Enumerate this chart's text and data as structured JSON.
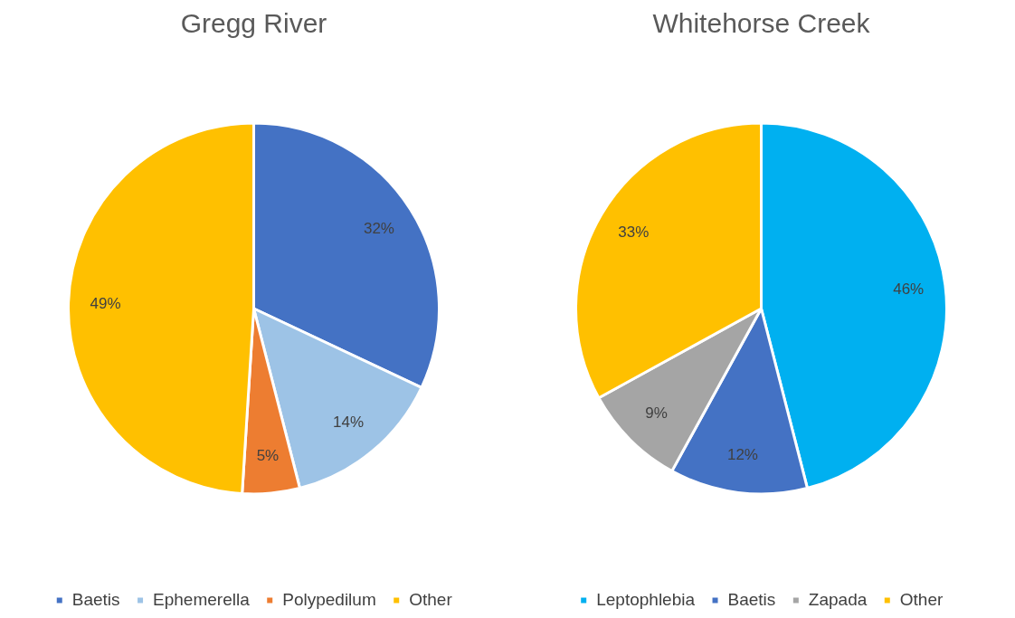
{
  "chart_data": [
    {
      "type": "pie",
      "title": "Gregg River",
      "categories": [
        "Baetis",
        "Ephemerella",
        "Polypedilum",
        "Other"
      ],
      "values": [
        32,
        14,
        5,
        49
      ],
      "colors": [
        "#4472c4",
        "#9dc3e6",
        "#ed7d31",
        "#ffc000"
      ],
      "value_labels": [
        "32%",
        "14%",
        "5%",
        "49%"
      ],
      "legend": "bottom"
    },
    {
      "type": "pie",
      "title": "Whitehorse Creek",
      "categories": [
        "Leptophlebia",
        "Baetis",
        "Zapada",
        "Other"
      ],
      "values": [
        46,
        12,
        9,
        33
      ],
      "colors": [
        "#00b0f0",
        "#4472c4",
        "#a5a5a5",
        "#ffc000"
      ],
      "value_labels": [
        "46%",
        "12%",
        "9%",
        "33%"
      ],
      "legend": "bottom"
    }
  ]
}
